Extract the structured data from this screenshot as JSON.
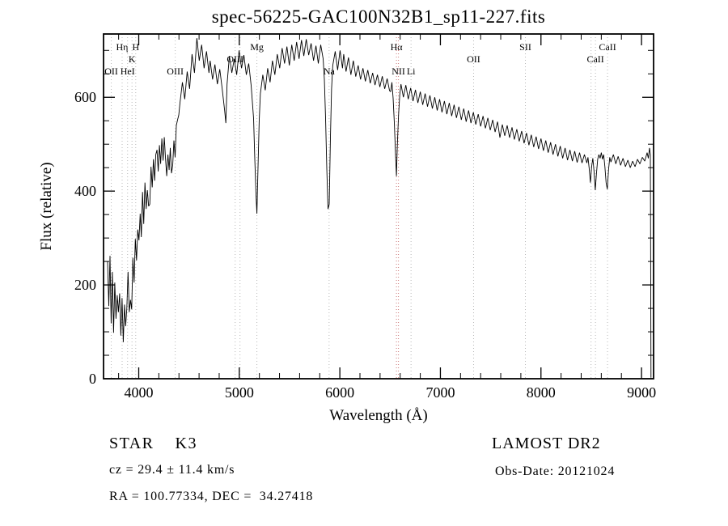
{
  "chart_data": {
    "type": "line",
    "title": "spec-56225-GAC100N32B1_sp11-227.fits",
    "xlabel": "Wavelength (Å)",
    "ylabel": "Flux (relative)",
    "xlim": [
      3650,
      9120
    ],
    "ylim": [
      0,
      735
    ],
    "xticks_major": [
      4000,
      5000,
      6000,
      7000,
      8000,
      9000
    ],
    "xtick_minor_step": 200,
    "yticks_major": [
      0,
      200,
      400,
      600
    ],
    "ytick_minor_step": 50,
    "grid": false,
    "legend": "none",
    "line_color": "#000000",
    "frame_color": "#000000",
    "marker_line_default_color": "#b8b8b8",
    "markers": [
      {
        "label": "OII",
        "wavelength": 3727,
        "row": 3,
        "color": "#b8b8b8"
      },
      {
        "label": "Hη",
        "wavelength": 3835,
        "row": 1,
        "color": "#b8b8b8"
      },
      {
        "label": "HeI",
        "wavelength": 3889,
        "row": 3,
        "color": "#b8b8b8"
      },
      {
        "label": "K",
        "wavelength": 3933,
        "row": 2,
        "color": "#b8b8b8"
      },
      {
        "label": "H",
        "wavelength": 3970,
        "row": 1,
        "color": "#b8b8b8"
      },
      {
        "label": "OIII",
        "wavelength": 4363,
        "row": 3,
        "color": "#b8b8b8"
      },
      {
        "label": "OIII",
        "wavelength": 4959,
        "row": 2,
        "color": "#b8b8b8"
      },
      {
        "label": "",
        "wavelength": 5007,
        "row": 2,
        "color": "#b8b8b8"
      },
      {
        "label": "Mg",
        "wavelength": 5175,
        "row": 1,
        "color": "#b8b8b8"
      },
      {
        "label": "Na",
        "wavelength": 5893,
        "row": 3,
        "color": "#b8b8b8"
      },
      {
        "label": "Hα",
        "wavelength": 6563,
        "row": 1,
        "color": "#cc7777"
      },
      {
        "label": "NII",
        "wavelength": 6583,
        "row": 3,
        "color": "#cc7777"
      },
      {
        "label": "Li",
        "wavelength": 6708,
        "row": 3,
        "color": "#b8b8b8"
      },
      {
        "label": "OII",
        "wavelength": 7330,
        "row": 2,
        "color": "#b8b8b8"
      },
      {
        "label": "SII",
        "wavelength": 7845,
        "row": 1,
        "color": "#b8b8b8"
      },
      {
        "label": "",
        "wavelength": 8498,
        "row": 2,
        "color": "#b8b8b8"
      },
      {
        "label": "CaII",
        "wavelength": 8542,
        "row": 2,
        "color": "#b8b8b8"
      },
      {
        "label": "CaII",
        "wavelength": 8662,
        "row": 1,
        "color": "#b8b8b8"
      }
    ],
    "series": [
      {
        "name": "spectrum",
        "points": [
          [
            3690,
            250
          ],
          [
            3702,
            155
          ],
          [
            3714,
            262
          ],
          [
            3726,
            118
          ],
          [
            3738,
            228
          ],
          [
            3750,
            98
          ],
          [
            3762,
            205
          ],
          [
            3774,
            128
          ],
          [
            3786,
            178
          ],
          [
            3798,
            142
          ],
          [
            3810,
            182
          ],
          [
            3822,
            92
          ],
          [
            3834,
            172
          ],
          [
            3846,
            78
          ],
          [
            3858,
            158
          ],
          [
            3870,
            112
          ],
          [
            3882,
            150
          ],
          [
            3894,
            228
          ],
          [
            3906,
            142
          ],
          [
            3918,
            168
          ],
          [
            3930,
            148
          ],
          [
            3942,
            258
          ],
          [
            3954,
            205
          ],
          [
            3966,
            298
          ],
          [
            3978,
            252
          ],
          [
            3990,
            318
          ],
          [
            4002,
            295
          ],
          [
            4014,
            352
          ],
          [
            4026,
            302
          ],
          [
            4038,
            398
          ],
          [
            4050,
            330
          ],
          [
            4062,
            418
          ],
          [
            4074,
            362
          ],
          [
            4086,
            402
          ],
          [
            4098,
            368
          ],
          [
            4110,
            372
          ],
          [
            4122,
            452
          ],
          [
            4134,
            408
          ],
          [
            4146,
            468
          ],
          [
            4158,
            422
          ],
          [
            4170,
            478
          ],
          [
            4182,
            488
          ],
          [
            4194,
            442
          ],
          [
            4206,
            498
          ],
          [
            4218,
            458
          ],
          [
            4230,
            512
          ],
          [
            4242,
            465
          ],
          [
            4254,
            515
          ],
          [
            4266,
            470
          ],
          [
            4278,
            432
          ],
          [
            4290,
            478
          ],
          [
            4302,
            445
          ],
          [
            4314,
            492
          ],
          [
            4326,
            438
          ],
          [
            4338,
            455
          ],
          [
            4350,
            508
          ],
          [
            4362,
            472
          ],
          [
            4374,
            540
          ],
          [
            4386,
            552
          ],
          [
            4398,
            562
          ],
          [
            4410,
            588
          ],
          [
            4434,
            632
          ],
          [
            4458,
            596
          ],
          [
            4482,
            655
          ],
          [
            4506,
            618
          ],
          [
            4530,
            692
          ],
          [
            4554,
            652
          ],
          [
            4578,
            726
          ],
          [
            4602,
            678
          ],
          [
            4626,
            712
          ],
          [
            4650,
            662
          ],
          [
            4674,
            698
          ],
          [
            4698,
            652
          ],
          [
            4710,
            678
          ],
          [
            4734,
            638
          ],
          [
            4758,
            670
          ],
          [
            4782,
            628
          ],
          [
            4806,
            660
          ],
          [
            4830,
            618
          ],
          [
            4854,
            572
          ],
          [
            4866,
            545
          ],
          [
            4878,
            628
          ],
          [
            4902,
            688
          ],
          [
            4926,
            652
          ],
          [
            4950,
            682
          ],
          [
            4974,
            648
          ],
          [
            4998,
            700
          ],
          [
            5022,
            662
          ],
          [
            5046,
            690
          ],
          [
            5070,
            648
          ],
          [
            5094,
            672
          ],
          [
            5118,
            625
          ],
          [
            5142,
            555
          ],
          [
            5154,
            468
          ],
          [
            5166,
            392
          ],
          [
            5175,
            352
          ],
          [
            5186,
            445
          ],
          [
            5198,
            548
          ],
          [
            5210,
            608
          ],
          [
            5234,
            648
          ],
          [
            5258,
            615
          ],
          [
            5282,
            662
          ],
          [
            5306,
            632
          ],
          [
            5330,
            678
          ],
          [
            5354,
            648
          ],
          [
            5378,
            692
          ],
          [
            5402,
            662
          ],
          [
            5426,
            705
          ],
          [
            5450,
            672
          ],
          [
            5474,
            708
          ],
          [
            5498,
            668
          ],
          [
            5522,
            712
          ],
          [
            5546,
            678
          ],
          [
            5570,
            718
          ],
          [
            5594,
            682
          ],
          [
            5618,
            722
          ],
          [
            5642,
            688
          ],
          [
            5666,
            724
          ],
          [
            5690,
            690
          ],
          [
            5714,
            715
          ],
          [
            5738,
            678
          ],
          [
            5762,
            710
          ],
          [
            5786,
            672
          ],
          [
            5810,
            712
          ],
          [
            5834,
            682
          ],
          [
            5846,
            638
          ],
          [
            5858,
            555
          ],
          [
            5870,
            448
          ],
          [
            5882,
            362
          ],
          [
            5894,
            372
          ],
          [
            5906,
            515
          ],
          [
            5918,
            618
          ],
          [
            5930,
            668
          ],
          [
            5954,
            698
          ],
          [
            5978,
            658
          ],
          [
            6002,
            700
          ],
          [
            6026,
            662
          ],
          [
            6038,
            692
          ],
          [
            6062,
            655
          ],
          [
            6086,
            685
          ],
          [
            6110,
            648
          ],
          [
            6134,
            678
          ],
          [
            6158,
            644
          ],
          [
            6182,
            668
          ],
          [
            6206,
            638
          ],
          [
            6230,
            662
          ],
          [
            6254,
            634
          ],
          [
            6278,
            658
          ],
          [
            6302,
            630
          ],
          [
            6326,
            652
          ],
          [
            6350,
            626
          ],
          [
            6374,
            648
          ],
          [
            6398,
            622
          ],
          [
            6422,
            645
          ],
          [
            6446,
            618
          ],
          [
            6470,
            640
          ],
          [
            6494,
            614
          ],
          [
            6506,
            612
          ],
          [
            6518,
            632
          ],
          [
            6530,
            598
          ],
          [
            6542,
            545
          ],
          [
            6554,
            478
          ],
          [
            6563,
            432
          ],
          [
            6572,
            498
          ],
          [
            6584,
            562
          ],
          [
            6596,
            605
          ],
          [
            6608,
            628
          ],
          [
            6632,
            600
          ],
          [
            6656,
            626
          ],
          [
            6680,
            596
          ],
          [
            6704,
            620
          ],
          [
            6728,
            592
          ],
          [
            6752,
            616
          ],
          [
            6776,
            588
          ],
          [
            6800,
            612
          ],
          [
            6824,
            584
          ],
          [
            6848,
            608
          ],
          [
            6872,
            580
          ],
          [
            6896,
            604
          ],
          [
            6920,
            576
          ],
          [
            6944,
            600
          ],
          [
            6968,
            572
          ],
          [
            6992,
            596
          ],
          [
            7016,
            568
          ],
          [
            7040,
            592
          ],
          [
            7064,
            564
          ],
          [
            7088,
            588
          ],
          [
            7112,
            560
          ],
          [
            7136,
            584
          ],
          [
            7160,
            556
          ],
          [
            7184,
            580
          ],
          [
            7208,
            552
          ],
          [
            7232,
            576
          ],
          [
            7256,
            548
          ],
          [
            7280,
            572
          ],
          [
            7304,
            545
          ],
          [
            7328,
            568
          ],
          [
            7352,
            542
          ],
          [
            7376,
            564
          ],
          [
            7400,
            538
          ],
          [
            7424,
            560
          ],
          [
            7448,
            534
          ],
          [
            7472,
            556
          ],
          [
            7496,
            530
          ],
          [
            7520,
            552
          ],
          [
            7544,
            526
          ],
          [
            7568,
            548
          ],
          [
            7592,
            514
          ],
          [
            7616,
            542
          ],
          [
            7640,
            518
          ],
          [
            7664,
            540
          ],
          [
            7688,
            514
          ],
          [
            7712,
            536
          ],
          [
            7736,
            510
          ],
          [
            7760,
            532
          ],
          [
            7784,
            506
          ],
          [
            7808,
            528
          ],
          [
            7832,
            502
          ],
          [
            7856,
            524
          ],
          [
            7880,
            498
          ],
          [
            7904,
            520
          ],
          [
            7928,
            494
          ],
          [
            7952,
            516
          ],
          [
            7976,
            490
          ],
          [
            8000,
            512
          ],
          [
            8024,
            486
          ],
          [
            8048,
            508
          ],
          [
            8072,
            482
          ],
          [
            8096,
            504
          ],
          [
            8120,
            478
          ],
          [
            8144,
            500
          ],
          [
            8168,
            474
          ],
          [
            8192,
            496
          ],
          [
            8216,
            470
          ],
          [
            8240,
            492
          ],
          [
            8264,
            466
          ],
          [
            8288,
            488
          ],
          [
            8312,
            464
          ],
          [
            8336,
            485
          ],
          [
            8360,
            461
          ],
          [
            8384,
            482
          ],
          [
            8408,
            460
          ],
          [
            8432,
            478
          ],
          [
            8456,
            460
          ],
          [
            8468,
            472
          ],
          [
            8480,
            448
          ],
          [
            8492,
            418
          ],
          [
            8504,
            452
          ],
          [
            8516,
            470
          ],
          [
            8528,
            442
          ],
          [
            8540,
            402
          ],
          [
            8552,
            438
          ],
          [
            8564,
            468
          ],
          [
            8576,
            478
          ],
          [
            8588,
            470
          ],
          [
            8600,
            482
          ],
          [
            8612,
            468
          ],
          [
            8624,
            478
          ],
          [
            8636,
            452
          ],
          [
            8648,
            418
          ],
          [
            8660,
            404
          ],
          [
            8672,
            445
          ],
          [
            8684,
            472
          ],
          [
            8696,
            462
          ],
          [
            8720,
            478
          ],
          [
            8744,
            458
          ],
          [
            8768,
            474
          ],
          [
            8792,
            455
          ],
          [
            8816,
            470
          ],
          [
            8840,
            452
          ],
          [
            8864,
            466
          ],
          [
            8888,
            450
          ],
          [
            8912,
            464
          ],
          [
            8936,
            452
          ],
          [
            8960,
            468
          ],
          [
            8984,
            458
          ],
          [
            9008,
            472
          ],
          [
            9032,
            464
          ],
          [
            9056,
            482
          ],
          [
            9068,
            470
          ],
          [
            9080,
            492
          ],
          [
            9088,
            478
          ],
          [
            9094,
            2
          ]
        ]
      }
    ]
  },
  "annotations": {
    "star_line": "STAR    K3",
    "survey": "LAMOST DR2",
    "cz_line": "cz = 29.4 ± 11.4 km/s",
    "obsdate_line": "Obs-Date: 20121024",
    "radec_line": "RA = 100.77334, DEC =  34.27418"
  }
}
